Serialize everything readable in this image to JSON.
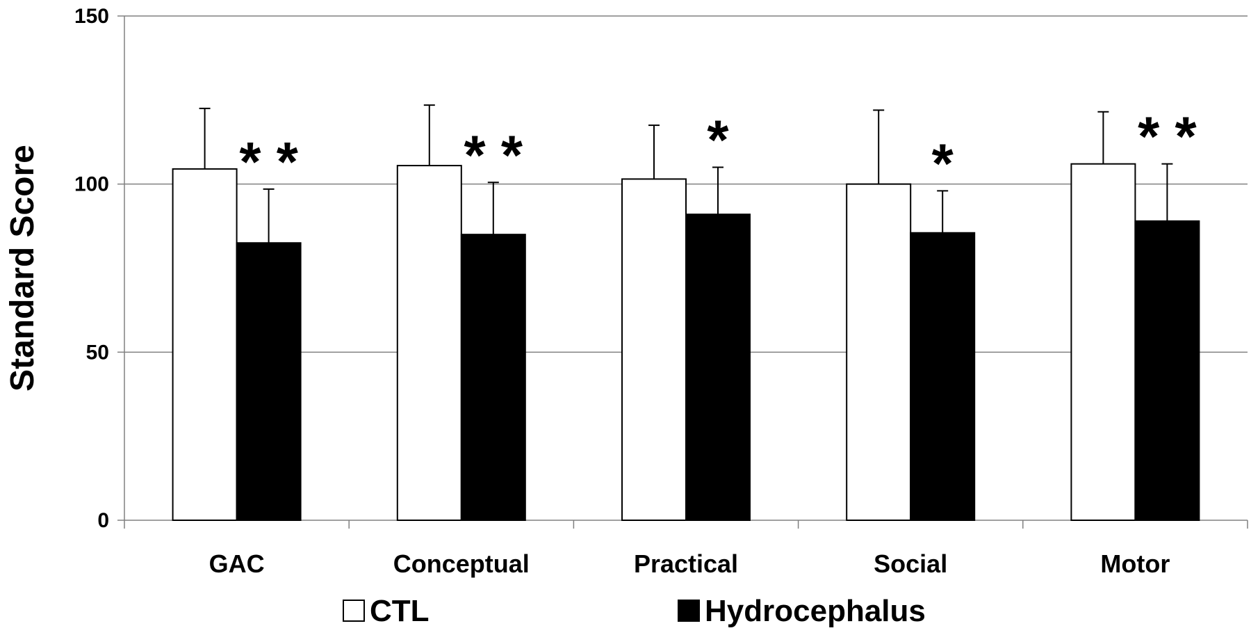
{
  "chart_data": {
    "type": "bar",
    "ylabel": "Standard Score",
    "xlabel": "",
    "ylim": [
      0,
      150
    ],
    "yticks": [
      0,
      50,
      100,
      150
    ],
    "grid": true,
    "legend_position": "bottom",
    "categories": [
      "GAC",
      "Conceptual",
      "Practical",
      "Social",
      "Motor"
    ],
    "series": [
      {
        "name": "CTL",
        "color": "#ffffff",
        "values": [
          104.5,
          105.5,
          101.5,
          100,
          106
        ],
        "error": [
          18,
          18,
          16,
          22,
          15.5
        ]
      },
      {
        "name": "Hydrocephalus",
        "color": "#000000",
        "values": [
          82.5,
          85,
          91,
          85.5,
          89
        ],
        "error": [
          16,
          15.5,
          14,
          12.5,
          17
        ]
      }
    ],
    "annotations": [
      "**",
      "**",
      "*",
      "*",
      "**"
    ]
  }
}
